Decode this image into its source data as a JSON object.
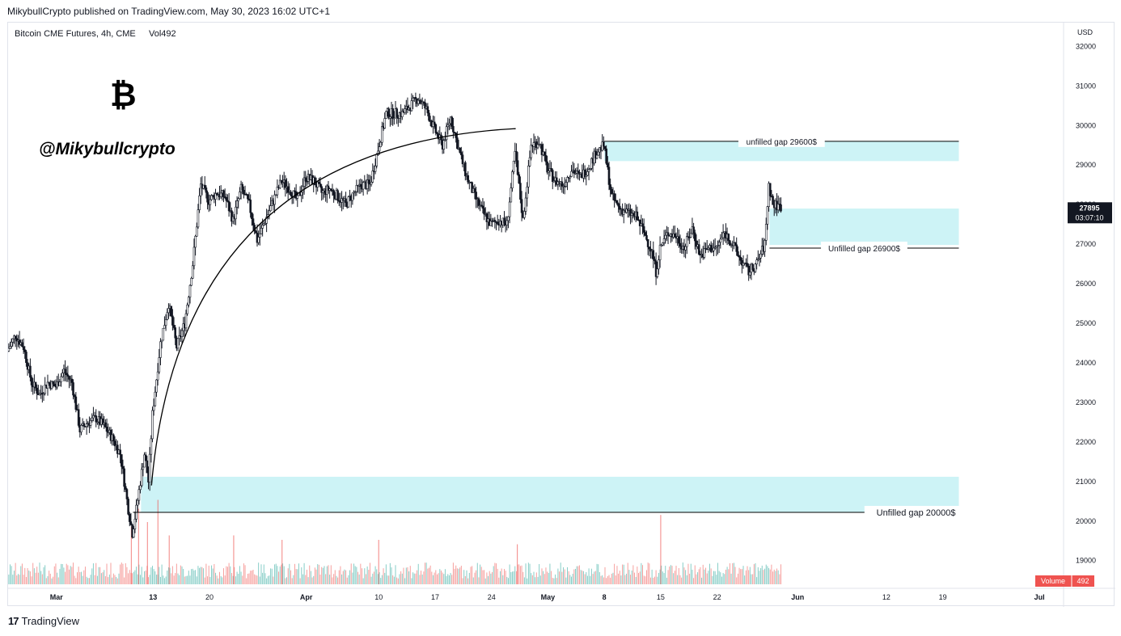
{
  "header": {
    "publish_line": "MikybullCrypto published on TradingView.com, May 30, 2023 16:02 UTC+1"
  },
  "footer": {
    "brand_logo": "17",
    "brand_name": "TradingView"
  },
  "chart_data": {
    "type": "candlestick",
    "title": "Bitcoin CME Futures, 4h, CME",
    "volume_label": "Vol492",
    "currency": "USD",
    "watermark_symbol": "₿",
    "watermark_handle": "@Mikybullcrypto",
    "y_ticks": [
      19000,
      20000,
      21000,
      22000,
      23000,
      24000,
      25000,
      26000,
      27000,
      28000,
      29000,
      30000,
      31000,
      32000
    ],
    "y_range": [
      18300,
      32600
    ],
    "x_ticks": [
      {
        "label": "Mar",
        "day": 0,
        "bold": true
      },
      {
        "label": "13",
        "day": 12,
        "bold": true
      },
      {
        "label": "20",
        "day": 19,
        "bold": false
      },
      {
        "label": "Apr",
        "day": 31,
        "bold": true
      },
      {
        "label": "10",
        "day": 40,
        "bold": false
      },
      {
        "label": "17",
        "day": 47,
        "bold": false
      },
      {
        "label": "24",
        "day": 54,
        "bold": false
      },
      {
        "label": "May",
        "day": 61,
        "bold": true
      },
      {
        "label": "8",
        "day": 68,
        "bold": true
      },
      {
        "label": "15",
        "day": 75,
        "bold": false
      },
      {
        "label": "22",
        "day": 82,
        "bold": false
      },
      {
        "label": "Jun",
        "day": 92,
        "bold": true
      },
      {
        "label": "12",
        "day": 103,
        "bold": false
      },
      {
        "label": "19",
        "day": 110,
        "bold": false
      },
      {
        "label": "Jul",
        "day": 122,
        "bold": true
      }
    ],
    "x_range": [
      -6,
      125
    ],
    "last_price": {
      "value": 27895,
      "label": "27895",
      "countdown": "03:07:10",
      "color": "#131722"
    },
    "volume_badge": {
      "label": "Volume",
      "value": "492",
      "color": "#ef5350"
    },
    "colors": {
      "up": "#26a69a",
      "down": "#ef5350",
      "candle": "#131722",
      "zone": "#cdf3f6",
      "line": "#000000"
    },
    "price_path": [
      [
        -6,
        24300
      ],
      [
        -5,
        24700
      ],
      [
        -4,
        24400
      ],
      [
        -3,
        23500
      ],
      [
        -2,
        23200
      ],
      [
        -1,
        23500
      ],
      [
        0,
        23400
      ],
      [
        1,
        23800
      ],
      [
        2,
        23500
      ],
      [
        3,
        22300
      ],
      [
        4,
        22500
      ],
      [
        5,
        22600
      ],
      [
        6,
        22400
      ],
      [
        7,
        22100
      ],
      [
        8,
        21700
      ],
      [
        9,
        20300
      ],
      [
        9.5,
        19700
      ],
      [
        10,
        20300
      ],
      [
        11,
        21700
      ],
      [
        11.5,
        21000
      ],
      [
        12,
        22700
      ],
      [
        13,
        24500
      ],
      [
        14,
        25500
      ],
      [
        15,
        24400
      ],
      [
        16,
        25000
      ],
      [
        17,
        26500
      ],
      [
        18,
        28500
      ],
      [
        19,
        28100
      ],
      [
        20,
        28300
      ],
      [
        21,
        28200
      ],
      [
        22,
        27600
      ],
      [
        23,
        28400
      ],
      [
        24,
        28000
      ],
      [
        25,
        27100
      ],
      [
        26,
        27600
      ],
      [
        27,
        28100
      ],
      [
        28,
        28600
      ],
      [
        29,
        28400
      ],
      [
        30,
        28100
      ],
      [
        31,
        28700
      ],
      [
        32,
        28600
      ],
      [
        33,
        28300
      ],
      [
        34,
        28400
      ],
      [
        35,
        28200
      ],
      [
        36,
        28000
      ],
      [
        37,
        28300
      ],
      [
        38,
        28500
      ],
      [
        39,
        28500
      ],
      [
        40,
        29400
      ],
      [
        41,
        30300
      ],
      [
        42,
        30300
      ],
      [
        43,
        30300
      ],
      [
        44,
        30500
      ],
      [
        45,
        30700
      ],
      [
        46,
        30400
      ],
      [
        47,
        29900
      ],
      [
        48,
        29500
      ],
      [
        49,
        30200
      ],
      [
        50,
        29400
      ],
      [
        51,
        28700
      ],
      [
        52,
        28200
      ],
      [
        53,
        27800
      ],
      [
        54,
        27500
      ],
      [
        55,
        27600
      ],
      [
        56,
        27500
      ],
      [
        57,
        29300
      ],
      [
        58,
        27600
      ],
      [
        59,
        29500
      ],
      [
        60,
        29600
      ],
      [
        61,
        28900
      ],
      [
        62,
        28600
      ],
      [
        63,
        28500
      ],
      [
        64,
        28900
      ],
      [
        65,
        28700
      ],
      [
        66,
        28900
      ],
      [
        67,
        29300
      ],
      [
        68,
        29500
      ],
      [
        69,
        28200
      ],
      [
        70,
        27900
      ],
      [
        71,
        27800
      ],
      [
        72,
        27700
      ],
      [
        73,
        27300
      ],
      [
        74,
        26800
      ],
      [
        74.5,
        26300
      ],
      [
        75,
        26900
      ],
      [
        76,
        27300
      ],
      [
        77,
        27200
      ],
      [
        78,
        26900
      ],
      [
        79,
        27400
      ],
      [
        80,
        26700
      ],
      [
        81,
        26900
      ],
      [
        82,
        26900
      ],
      [
        83,
        27300
      ],
      [
        84,
        27000
      ],
      [
        85,
        26600
      ],
      [
        86,
        26300
      ],
      [
        87,
        26500
      ],
      [
        88,
        27000
      ],
      [
        88.5,
        28500
      ],
      [
        89,
        28000
      ],
      [
        90,
        27950
      ]
    ],
    "gap_lines": [
      {
        "label": "unfilled gap 29600$",
        "price": 29600,
        "x1": 68,
        "x2": 112
      },
      {
        "label": "Unfilled gap 26900$",
        "price": 26900,
        "x1": 88.5,
        "x2": 112
      },
      {
        "label": "Unfilled gap 20000$",
        "price": 20220,
        "x1": 9.5,
        "x2": 112
      }
    ],
    "gap_zones": [
      {
        "x1": 68,
        "x2": 112,
        "y_low": 29100,
        "y_high": 29600
      },
      {
        "x1": 88.5,
        "x2": 112,
        "y_low": 26980,
        "y_high": 27900
      },
      {
        "x1": 10.5,
        "x2": 112,
        "y_low": 20220,
        "y_high": 21120
      }
    ],
    "arc": {
      "start": [
        11.8,
        20900
      ],
      "end": [
        57,
        29920
      ]
    },
    "volume_scale_max": 1.0,
    "volume_spikes": [
      {
        "x": 9.3,
        "v": 0.65
      },
      {
        "x": 10.2,
        "v": 0.85
      },
      {
        "x": 11.3,
        "v": 0.7
      },
      {
        "x": 12.6,
        "v": 0.95
      },
      {
        "x": 14,
        "v": 0.55
      },
      {
        "x": 22,
        "v": 0.55
      },
      {
        "x": 28,
        "v": 0.5
      },
      {
        "x": 40,
        "v": 0.5
      },
      {
        "x": 57.2,
        "v": 0.45
      },
      {
        "x": 75,
        "v": 0.78
      }
    ]
  }
}
